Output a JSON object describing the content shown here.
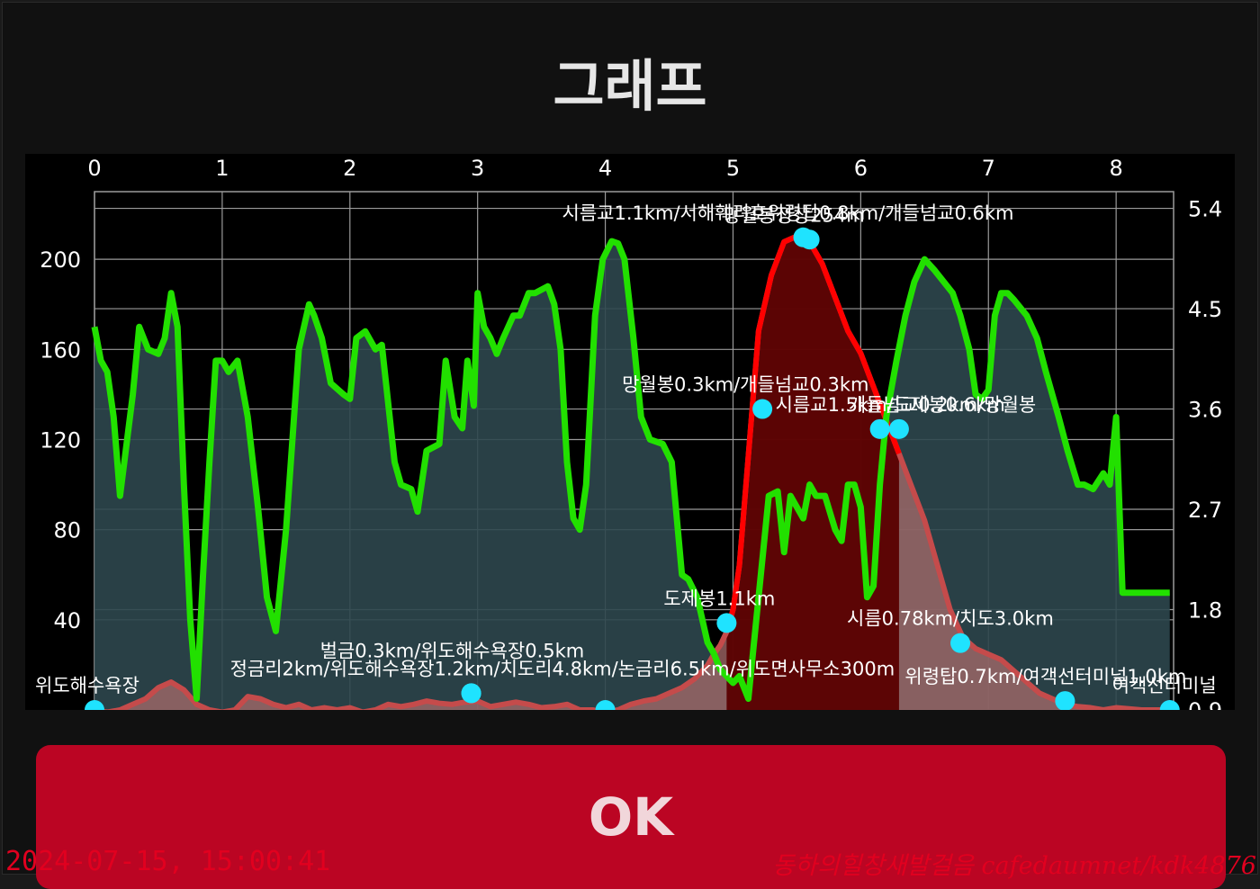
{
  "dialog": {
    "title": "그래프",
    "ok_label": "OK"
  },
  "watermark": {
    "timestamp": "2024-07-15, 15:00:41",
    "credit": "동하의힐창새발걸음 cafedaumnet/kdk4876"
  },
  "colors": {
    "background": "#000000",
    "grid": "#9a9a9a",
    "elevation_line": "#22e000",
    "elevation_fill": "#2e474e",
    "speed_line_highlight": "#ff0000",
    "speed_fill_highlight": "#5a0000",
    "speed_line": "#c54b4b",
    "speed_fill": "#a86b6b",
    "waypoint_marker": "#1fe3ff",
    "ok_button": "#bb0523"
  },
  "chart_data": {
    "type": "area",
    "x_ticks": [
      "0",
      "1",
      "2",
      "3",
      "4",
      "5",
      "6",
      "7",
      "8"
    ],
    "xlim": [
      0,
      8.45
    ],
    "y_left_ticks": [
      "200",
      "160",
      "120",
      "80",
      "40"
    ],
    "ylim_left": [
      0,
      230
    ],
    "y_right_ticks": [
      "5.4",
      "4.5",
      "3.6",
      "2.7",
      "1.8",
      "0.9"
    ],
    "ylim_right": [
      0.9,
      5.55
    ],
    "grid": true,
    "series": [
      {
        "axis": "left",
        "x": [
          0,
          0.05,
          0.1,
          0.15,
          0.2,
          0.3,
          0.35,
          0.42,
          0.5,
          0.55,
          0.6,
          0.65,
          0.7,
          0.75,
          0.8,
          0.85,
          0.9,
          0.95,
          1.0,
          1.05,
          1.12,
          1.2,
          1.28,
          1.35,
          1.42,
          1.5,
          1.6,
          1.68,
          1.72,
          1.78,
          1.85,
          1.95,
          2.0,
          2.05,
          2.12,
          2.2,
          2.25,
          2.35,
          2.4,
          2.48,
          2.53,
          2.6,
          2.7,
          2.75,
          2.82,
          2.88,
          2.92,
          2.97,
          3.0,
          3.05,
          3.1,
          3.15,
          3.2,
          3.28,
          3.33,
          3.4,
          3.45,
          3.55,
          3.6,
          3.65,
          3.7,
          3.75,
          3.8,
          3.85,
          3.92,
          3.98,
          4.05,
          4.1,
          4.15,
          4.22,
          4.28,
          4.35,
          4.45,
          4.52,
          4.6,
          4.65,
          4.72,
          4.8,
          4.85,
          4.9,
          4.95,
          5.0,
          5.05,
          5.12,
          5.2,
          5.28,
          5.35,
          5.4,
          5.45,
          5.5,
          5.55,
          5.6,
          5.65,
          5.72,
          5.8,
          5.85,
          5.9,
          5.95,
          6.0,
          6.05,
          6.1,
          6.15,
          6.2,
          6.28,
          6.35,
          6.42,
          6.5,
          6.58,
          6.65,
          6.72,
          6.78,
          6.85,
          6.9,
          6.95,
          7.0,
          7.05,
          7.1,
          7.15,
          7.2,
          7.3,
          7.38,
          7.45,
          7.55,
          7.62,
          7.7,
          7.75,
          7.82,
          7.9,
          7.95,
          8.0,
          8.05,
          8.1,
          8.15,
          8.2,
          8.25,
          8.28,
          8.32,
          8.35,
          8.38,
          8.42
        ],
        "values": [
          170,
          155,
          150,
          130,
          95,
          140,
          170,
          160,
          158,
          165,
          185,
          170,
          100,
          40,
          5,
          60,
          110,
          155,
          155,
          150,
          155,
          130,
          90,
          50,
          35,
          80,
          160,
          180,
          175,
          165,
          145,
          140,
          138,
          165,
          168,
          160,
          162,
          110,
          100,
          98,
          88,
          115,
          118,
          155,
          130,
          125,
          155,
          135,
          185,
          170,
          165,
          158,
          165,
          175,
          175,
          185,
          185,
          188,
          180,
          160,
          110,
          85,
          80,
          100,
          175,
          200,
          208,
          207,
          200,
          165,
          130,
          120,
          118,
          110,
          60,
          58,
          50,
          30,
          25,
          18,
          15,
          12,
          15,
          5,
          50,
          95,
          97,
          70,
          95,
          90,
          85,
          100,
          95,
          95,
          80,
          75,
          100,
          100,
          90,
          50,
          55,
          100,
          130,
          155,
          175,
          190,
          200,
          195,
          190,
          185,
          175,
          160,
          140,
          138,
          142,
          175,
          185,
          185,
          182,
          175,
          165,
          150,
          130,
          115,
          100,
          100,
          98,
          105,
          100,
          130,
          52,
          52,
          52,
          52,
          52,
          52,
          52,
          52,
          52,
          52
        ]
      },
      {
        "axis": "right",
        "x": [
          0,
          0.1,
          0.2,
          0.3,
          0.4,
          0.5,
          0.6,
          0.7,
          0.8,
          0.9,
          1.0,
          1.1,
          1.2,
          1.3,
          1.4,
          1.5,
          1.6,
          1.7,
          1.8,
          1.9,
          2.0,
          2.1,
          2.2,
          2.3,
          2.4,
          2.5,
          2.6,
          2.7,
          2.8,
          2.9,
          3.0,
          3.1,
          3.2,
          3.3,
          3.4,
          3.5,
          3.6,
          3.7,
          3.8,
          3.9,
          4.0,
          4.1,
          4.2,
          4.3,
          4.4,
          4.5,
          4.6,
          4.7,
          4.8,
          4.85,
          4.9,
          4.95,
          5.0,
          5.05,
          5.1,
          5.15,
          5.2,
          5.3,
          5.4,
          5.5,
          5.6,
          5.7,
          5.8,
          5.9,
          6.0,
          6.1,
          6.2,
          6.3,
          6.4,
          6.5,
          6.6,
          6.7,
          6.8,
          6.9,
          7.0,
          7.1,
          7.2,
          7.3,
          7.4,
          7.5,
          7.6,
          7.7,
          7.8,
          7.9,
          8.0,
          8.1,
          8.2,
          8.3,
          8.42
        ],
        "values": [
          0.9,
          0.88,
          0.9,
          0.95,
          1.0,
          1.1,
          1.15,
          1.08,
          0.95,
          0.9,
          0.88,
          0.9,
          1.02,
          1.0,
          0.95,
          0.92,
          0.95,
          0.9,
          0.92,
          0.9,
          0.92,
          0.88,
          0.9,
          0.95,
          0.93,
          0.95,
          0.98,
          0.96,
          0.95,
          0.97,
          0.98,
          0.93,
          0.95,
          0.97,
          0.95,
          0.92,
          0.93,
          0.95,
          0.9,
          0.9,
          0.88,
          0.9,
          0.95,
          0.98,
          1.0,
          1.05,
          1.1,
          1.18,
          1.3,
          1.4,
          1.48,
          1.6,
          1.8,
          2.2,
          2.9,
          3.6,
          4.3,
          4.8,
          5.1,
          5.15,
          5.1,
          4.9,
          4.6,
          4.3,
          4.1,
          3.8,
          3.5,
          3.2,
          2.9,
          2.6,
          2.2,
          1.8,
          1.55,
          1.45,
          1.4,
          1.35,
          1.25,
          1.15,
          1.05,
          1.0,
          0.95,
          0.93,
          0.92,
          0.9,
          0.92,
          0.91,
          0.9,
          0.9,
          0.9
        ]
      }
    ],
    "highlight_x_range": [
      4.95,
      6.35
    ],
    "waypoints": [
      {
        "x": 0.0,
        "y": 0.9,
        "label": "위도해수욕장"
      },
      {
        "x": 2.95,
        "y": 1.05,
        "label": "정금리2km/위도해수욕장1.2km/치도리4.8km/논금리6.5km/위도면사무소300m"
      },
      {
        "x": 2.95,
        "y": 1.05,
        "label": "벌금0.3km/위도해수욕장0.5km"
      },
      {
        "x": 4.0,
        "y": 0.9,
        "label": ""
      },
      {
        "x": 4.95,
        "y": 1.68,
        "label": "도제봉1.1km"
      },
      {
        "x": 5.23,
        "y": 3.6,
        "label": "망월봉0.3km/개들넘교0.3km"
      },
      {
        "x": 5.55,
        "y": 5.14,
        "label": "시름교1.1km/서해훼리호위령탑0.8km/개들넘교0.6km"
      },
      {
        "x": 5.6,
        "y": 5.12,
        "label": "망월봉정상254m"
      },
      {
        "x": 6.15,
        "y": 3.42,
        "label": "시름교1.5km/도제봉0.6km"
      },
      {
        "x": 6.3,
        "y": 3.42,
        "label": "개들넘교0.2km/망월봉"
      },
      {
        "x": 6.78,
        "y": 1.5,
        "label": "시름0.78km/치도3.0km"
      },
      {
        "x": 7.6,
        "y": 0.98,
        "label": "위령탑0.7km/여객선터미널1.0km"
      },
      {
        "x": 8.42,
        "y": 0.9,
        "label": "여객선터미널"
      }
    ]
  }
}
